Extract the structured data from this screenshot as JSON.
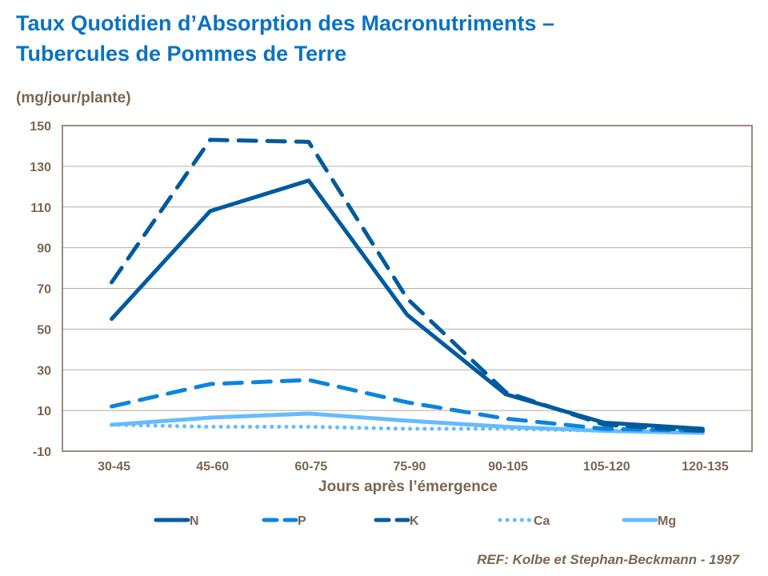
{
  "chart_data": {
    "type": "line",
    "title_line1": "Taux Quotidien d’Absorption des Macronutriments –",
    "title_line2": "Tubercules de Pommes de Terre",
    "ylabel": "(mg/jour/plante)",
    "xlabel": "Jours après l’émergence",
    "categories": [
      "30-45",
      "45-60",
      "60-75",
      "75-90",
      "90-105",
      "105-120",
      "120-135"
    ],
    "ylim": [
      -10,
      150
    ],
    "yticks": [
      -10,
      10,
      30,
      50,
      70,
      90,
      110,
      130,
      150
    ],
    "grid": true,
    "legend_position": "bottom",
    "series": [
      {
        "name": "N",
        "style": "solid",
        "color": "#005a9e",
        "values": [
          55,
          108,
          123,
          57,
          18,
          4,
          1
        ]
      },
      {
        "name": "P",
        "style": "dash",
        "color": "#0a84e0",
        "values": [
          12,
          23,
          25,
          14,
          6,
          1,
          0
        ]
      },
      {
        "name": "K",
        "style": "dash",
        "color": "#005a9e",
        "values": [
          73,
          143,
          142,
          65,
          19,
          3,
          0
        ]
      },
      {
        "name": "Ca",
        "style": "dot",
        "color": "#66bbff",
        "values": [
          3,
          2,
          2,
          1,
          1,
          0,
          0
        ]
      },
      {
        "name": "Mg",
        "style": "solid",
        "color": "#66bbff",
        "values": [
          3,
          6.5,
          8.5,
          5,
          2,
          0,
          -1
        ]
      }
    ]
  },
  "reference": "REF: Kolbe et Stephan-Beckmann - 1997"
}
